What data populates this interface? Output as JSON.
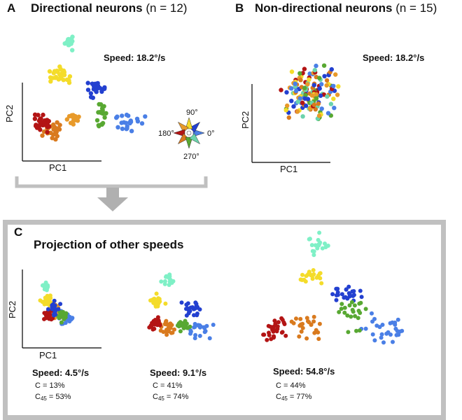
{
  "colors": {
    "0": "#4a7fe6",
    "45": "#2340d0",
    "90": "#f4dc2a",
    "135": "#e89a2a",
    "180": "#b31414",
    "225": "#d97a1e",
    "270": "#58a832",
    "315": "#6bd3ac",
    "90b": "#7ff0c6"
  },
  "panel_a": {
    "letter": "A",
    "title": "Directional neurons",
    "n": "(n = 12)",
    "speed": "Speed: 18.2°/s",
    "pc1": "PC1",
    "pc2": "PC2"
  },
  "panel_b": {
    "letter": "B",
    "title": "Non-directional neurons",
    "n": "(n = 15)",
    "speed": "Speed: 18.2°/s",
    "pc1": "PC1",
    "pc2": "PC2"
  },
  "legend": {
    "top": "90°",
    "left": "180°",
    "right": "0°",
    "bottom": "270°"
  },
  "panel_c": {
    "letter": "C",
    "title": "Projection of other speeds",
    "pc1": "PC1",
    "pc2": "PC2",
    "subplots": [
      {
        "speed": "Speed: 4.5°/s",
        "c": "C = 13%",
        "c45_label": "C",
        "c45_sub": "45",
        "c45_value": " = 53%"
      },
      {
        "speed": "Speed: 9.1°/s",
        "c": "C = 41%",
        "c45_label": "C",
        "c45_sub": "45",
        "c45_value": " = 74%"
      },
      {
        "speed": "Speed: 54.8°/s",
        "c": "C = 44%",
        "c45_label": "C",
        "c45_sub": "45",
        "c45_value": " = 77%"
      }
    ]
  }
}
